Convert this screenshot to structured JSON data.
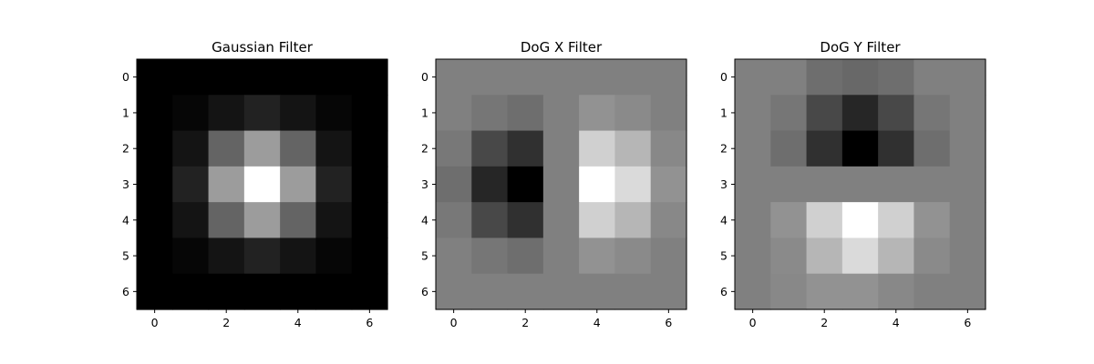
{
  "chart_data": [
    {
      "type": "heatmap",
      "title": "Gaussian Filter",
      "colormap": "gray",
      "xticks": [
        "0",
        "2",
        "4",
        "6"
      ],
      "yticks": [
        "0",
        "1",
        "2",
        "3",
        "4",
        "5",
        "6"
      ],
      "values": [
        [
          0,
          0,
          0,
          0,
          0,
          0,
          0
        ],
        [
          0,
          6,
          20,
          34,
          20,
          6,
          0
        ],
        [
          0,
          20,
          100,
          156,
          100,
          20,
          0
        ],
        [
          0,
          34,
          156,
          255,
          156,
          34,
          0
        ],
        [
          0,
          20,
          100,
          156,
          100,
          20,
          0
        ],
        [
          0,
          6,
          20,
          34,
          20,
          6,
          0
        ],
        [
          0,
          0,
          0,
          0,
          0,
          0,
          0
        ]
      ]
    },
    {
      "type": "heatmap",
      "title": "DoG X Filter",
      "colormap": "gray",
      "xticks": [
        "0",
        "2",
        "4",
        "6"
      ],
      "yticks": [
        "0",
        "1",
        "2",
        "3",
        "4",
        "5",
        "6"
      ],
      "values": [
        [
          128,
          128,
          128,
          128,
          128,
          128,
          128
        ],
        [
          128,
          118,
          110,
          128,
          146,
          138,
          128
        ],
        [
          120,
          72,
          48,
          128,
          208,
          182,
          136
        ],
        [
          110,
          38,
          0,
          128,
          255,
          218,
          146
        ],
        [
          120,
          72,
          48,
          128,
          208,
          182,
          136
        ],
        [
          128,
          118,
          110,
          128,
          146,
          138,
          128
        ],
        [
          128,
          128,
          128,
          128,
          128,
          128,
          128
        ]
      ]
    },
    {
      "type": "heatmap",
      "title": "DoG Y Filter",
      "colormap": "gray",
      "xticks": [
        "0",
        "2",
        "4",
        "6"
      ],
      "yticks": [
        "0",
        "1",
        "2",
        "3",
        "4",
        "5",
        "6"
      ],
      "values": [
        [
          128,
          128,
          110,
          104,
          110,
          128,
          128
        ],
        [
          128,
          118,
          72,
          38,
          72,
          118,
          128
        ],
        [
          128,
          110,
          48,
          0,
          48,
          110,
          128
        ],
        [
          128,
          128,
          128,
          128,
          128,
          128,
          128
        ],
        [
          128,
          146,
          208,
          255,
          208,
          146,
          128
        ],
        [
          128,
          138,
          182,
          218,
          182,
          138,
          128
        ],
        [
          128,
          136,
          146,
          146,
          136,
          128,
          128
        ]
      ]
    }
  ]
}
